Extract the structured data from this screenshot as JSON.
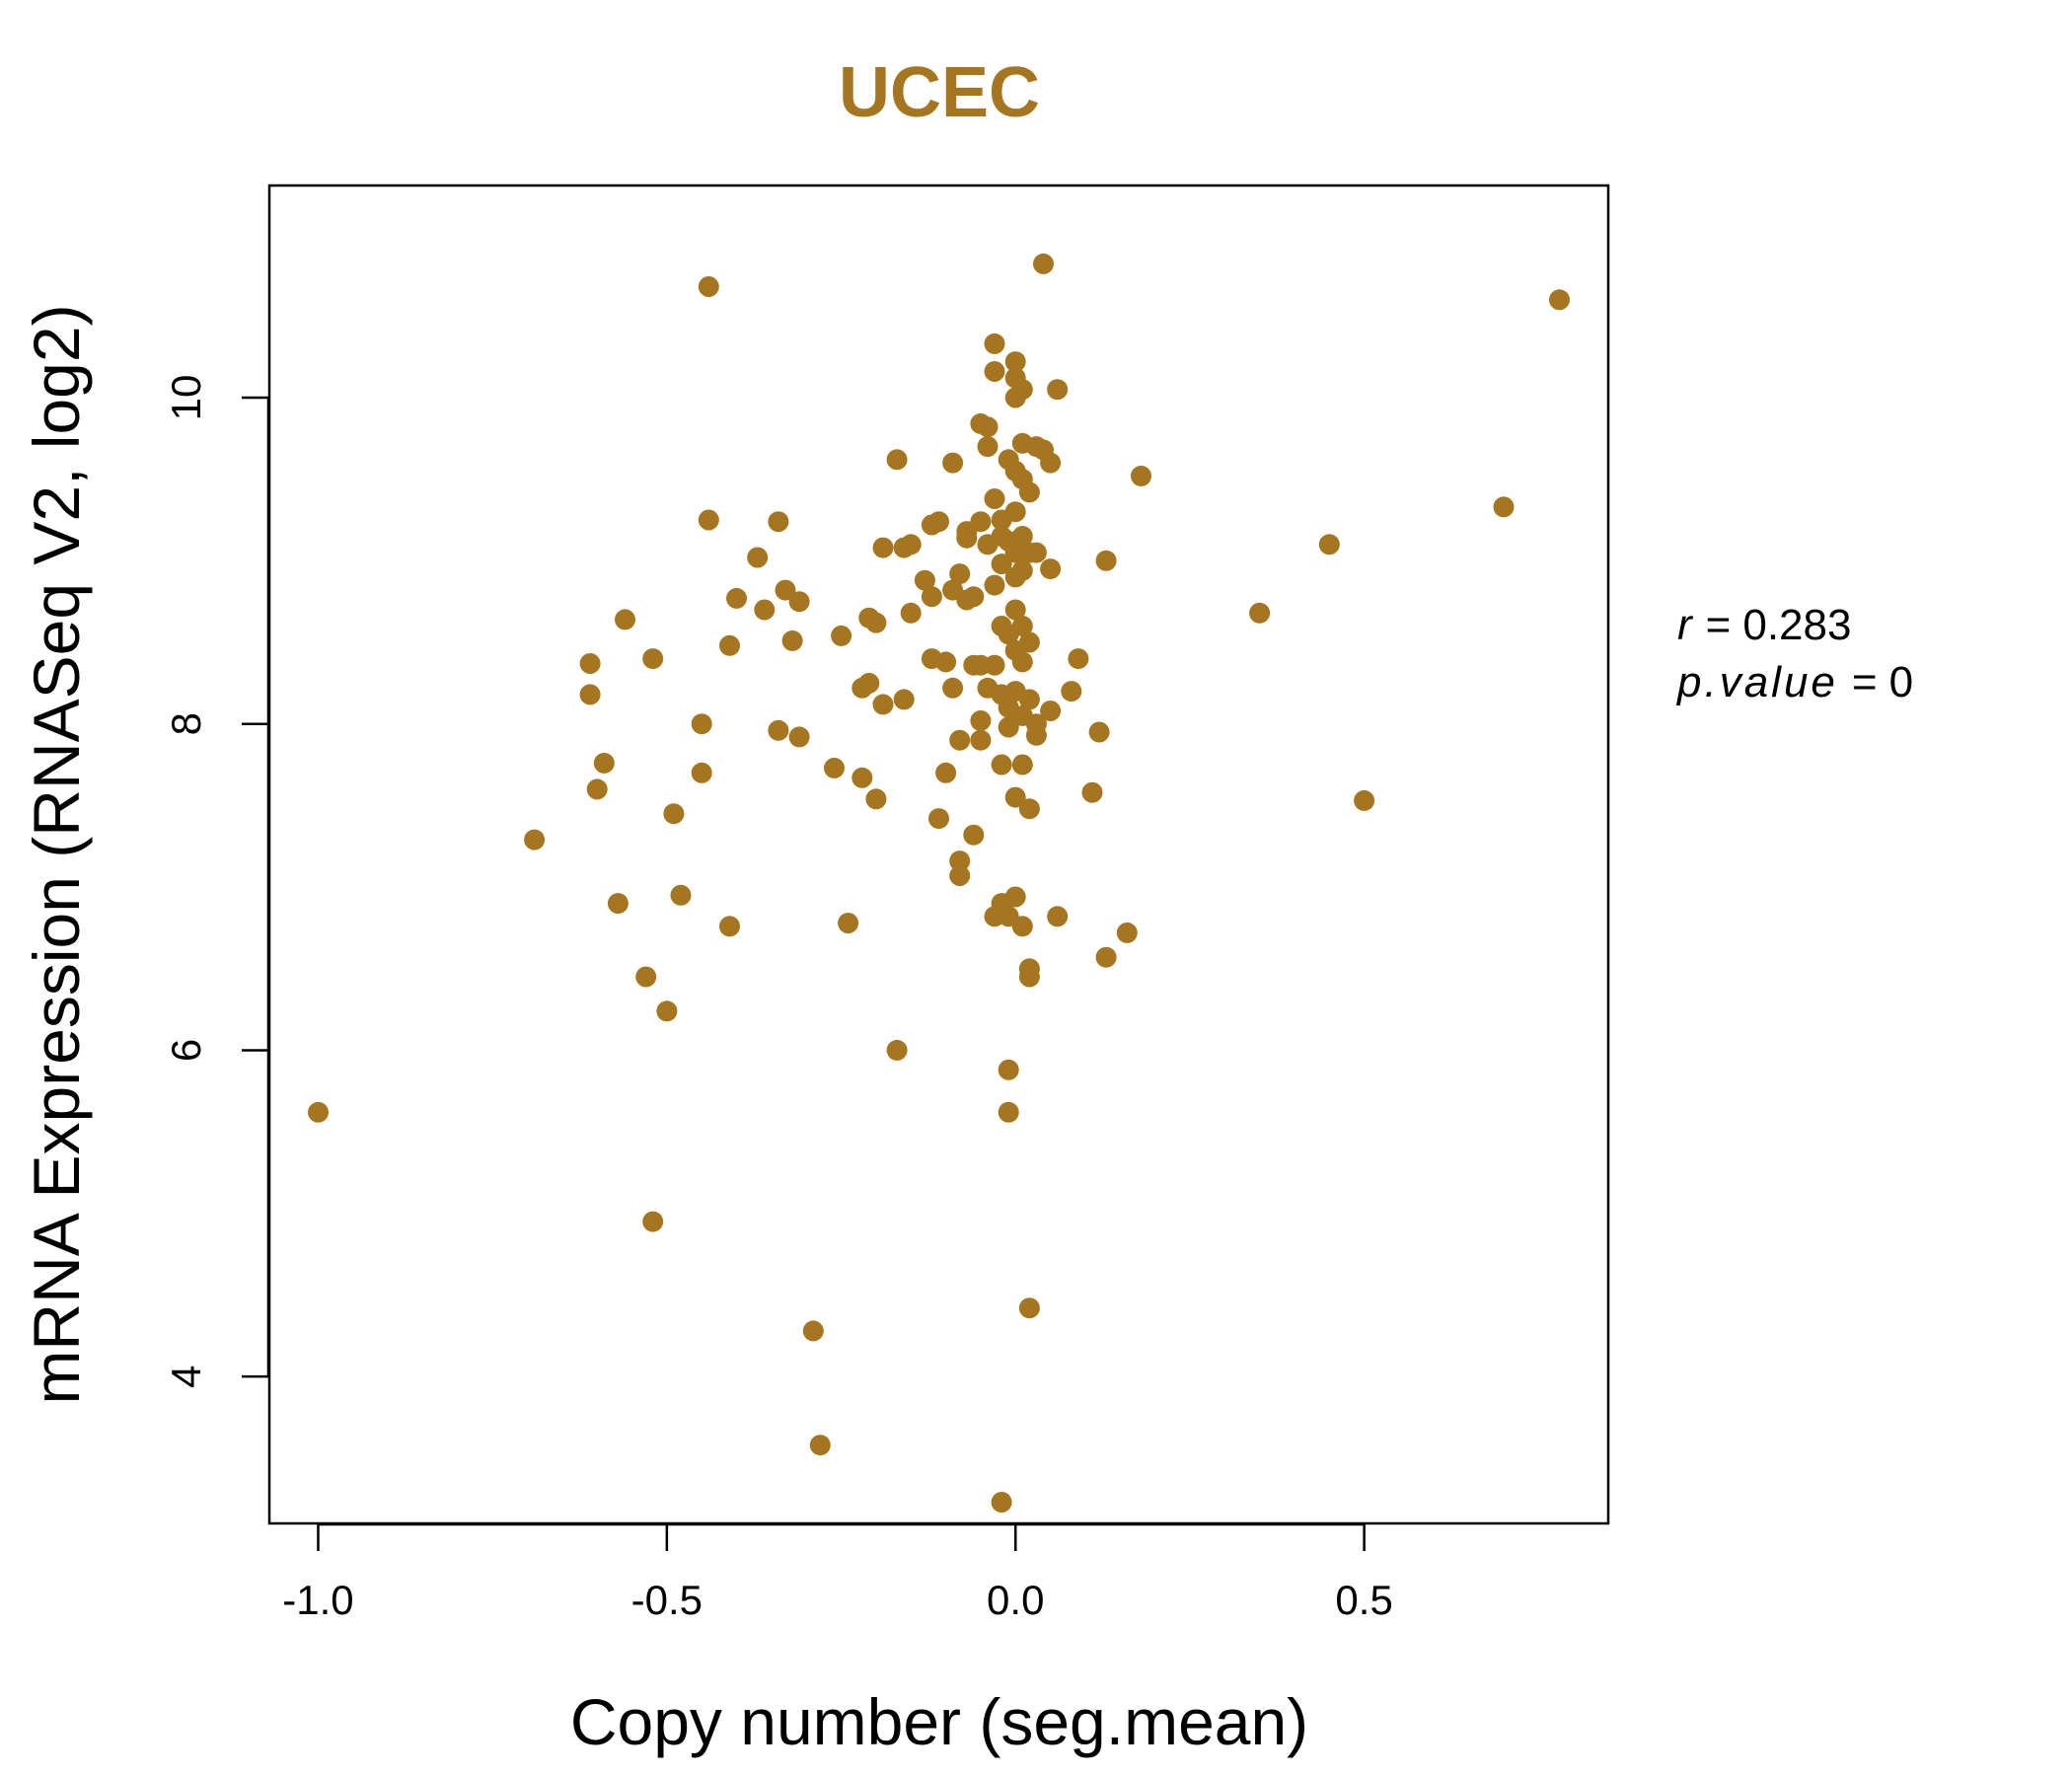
{
  "chart_data": {
    "type": "scatter",
    "title": "UCEC",
    "xlabel": "Copy number (seg.mean)",
    "ylabel": "mRNA Expression (RNASeq V2, log2)",
    "xlim": [
      -1.07,
      0.85
    ],
    "ylim": [
      3.1,
      11.3
    ],
    "x_ticks": [
      {
        "value": -1.0,
        "label": "-1.0"
      },
      {
        "value": -0.5,
        "label": "-0.5"
      },
      {
        "value": 0.0,
        "label": "0.0"
      },
      {
        "value": 0.5,
        "label": "0.5"
      }
    ],
    "y_ticks": [
      {
        "value": 4,
        "label": "4"
      },
      {
        "value": 6,
        "label": "6"
      },
      {
        "value": 8,
        "label": "8"
      },
      {
        "value": 10,
        "label": "10"
      }
    ],
    "point_color": "#a5761f",
    "grid": false,
    "legend": "none",
    "stats": {
      "r_symbol": "r",
      "r_value": "0.283",
      "p_symbol": "p.value",
      "p_value": "0"
    },
    "points": [
      [
        -1.0,
        5.62
      ],
      [
        -0.69,
        7.29
      ],
      [
        -0.61,
        8.37
      ],
      [
        -0.61,
        8.18
      ],
      [
        -0.6,
        7.6
      ],
      [
        -0.59,
        7.76
      ],
      [
        -0.57,
        6.9
      ],
      [
        -0.56,
        8.64
      ],
      [
        -0.53,
        6.45
      ],
      [
        -0.52,
        4.95
      ],
      [
        -0.52,
        8.4
      ],
      [
        -0.5,
        6.24
      ],
      [
        -0.49,
        7.45
      ],
      [
        -0.48,
        6.95
      ],
      [
        -0.45,
        8.0
      ],
      [
        -0.45,
        7.7
      ],
      [
        -0.44,
        9.25
      ],
      [
        -0.44,
        10.68
      ],
      [
        -0.41,
        6.76
      ],
      [
        -0.41,
        8.48
      ],
      [
        -0.4,
        8.77
      ],
      [
        -0.37,
        9.02
      ],
      [
        -0.36,
        8.7
      ],
      [
        -0.34,
        9.24
      ],
      [
        -0.34,
        7.96
      ],
      [
        -0.33,
        8.82
      ],
      [
        -0.32,
        8.51
      ],
      [
        -0.31,
        8.75
      ],
      [
        -0.31,
        7.92
      ],
      [
        -0.29,
        4.28
      ],
      [
        -0.28,
        3.58
      ],
      [
        -0.26,
        7.73
      ],
      [
        -0.25,
        8.54
      ],
      [
        -0.24,
        6.78
      ],
      [
        -0.22,
        8.22
      ],
      [
        -0.22,
        7.67
      ],
      [
        -0.21,
        8.25
      ],
      [
        -0.21,
        8.65
      ],
      [
        -0.2,
        8.62
      ],
      [
        -0.2,
        7.54
      ],
      [
        -0.19,
        9.08
      ],
      [
        -0.19,
        8.12
      ],
      [
        -0.17,
        9.62
      ],
      [
        -0.17,
        6.0
      ],
      [
        -0.16,
        9.08
      ],
      [
        -0.16,
        8.15
      ],
      [
        -0.15,
        9.1
      ],
      [
        -0.15,
        8.68
      ],
      [
        -0.13,
        8.88
      ],
      [
        -0.12,
        9.22
      ],
      [
        -0.12,
        8.4
      ],
      [
        -0.12,
        8.78
      ],
      [
        -0.11,
        7.42
      ],
      [
        -0.11,
        9.24
      ],
      [
        -0.1,
        8.38
      ],
      [
        -0.1,
        7.7
      ],
      [
        -0.09,
        9.6
      ],
      [
        -0.09,
        8.82
      ],
      [
        -0.09,
        8.22
      ],
      [
        -0.08,
        8.92
      ],
      [
        -0.08,
        7.9
      ],
      [
        -0.08,
        7.07
      ],
      [
        -0.08,
        7.16
      ],
      [
        -0.07,
        9.18
      ],
      [
        -0.07,
        8.76
      ],
      [
        -0.07,
        9.14
      ],
      [
        -0.06,
        8.36
      ],
      [
        -0.06,
        7.32
      ],
      [
        -0.06,
        8.78
      ],
      [
        -0.05,
        9.84
      ],
      [
        -0.05,
        9.24
      ],
      [
        -0.05,
        8.36
      ],
      [
        -0.05,
        8.02
      ],
      [
        -0.05,
        7.9
      ],
      [
        -0.04,
        9.82
      ],
      [
        -0.04,
        9.7
      ],
      [
        -0.04,
        9.1
      ],
      [
        -0.04,
        8.22
      ],
      [
        -0.03,
        10.33
      ],
      [
        -0.03,
        10.16
      ],
      [
        -0.03,
        9.38
      ],
      [
        -0.03,
        8.85
      ],
      [
        -0.03,
        8.36
      ],
      [
        -0.03,
        6.82
      ],
      [
        -0.02,
        9.25
      ],
      [
        -0.02,
        9.15
      ],
      [
        -0.02,
        8.98
      ],
      [
        -0.02,
        8.6
      ],
      [
        -0.02,
        8.18
      ],
      [
        -0.02,
        7.75
      ],
      [
        -0.02,
        6.9
      ],
      [
        -0.02,
        3.23
      ],
      [
        -0.01,
        9.62
      ],
      [
        -0.01,
        9.12
      ],
      [
        -0.01,
        8.55
      ],
      [
        -0.01,
        8.1
      ],
      [
        -0.01,
        7.98
      ],
      [
        -0.01,
        6.82
      ],
      [
        -0.01,
        5.62
      ],
      [
        -0.01,
        5.88
      ],
      [
        0.0,
        9.55
      ],
      [
        0.0,
        9.3
      ],
      [
        0.0,
        9.05
      ],
      [
        0.0,
        8.9
      ],
      [
        0.0,
        8.7
      ],
      [
        0.0,
        8.45
      ],
      [
        0.0,
        8.2
      ],
      [
        0.0,
        7.55
      ],
      [
        0.0,
        6.94
      ],
      [
        0.0,
        10.22
      ],
      [
        0.0,
        10.12
      ],
      [
        0.0,
        10.0
      ],
      [
        0.01,
        9.72
      ],
      [
        0.01,
        9.5
      ],
      [
        0.01,
        9.15
      ],
      [
        0.01,
        8.94
      ],
      [
        0.01,
        8.6
      ],
      [
        0.01,
        8.38
      ],
      [
        0.01,
        8.05
      ],
      [
        0.01,
        7.75
      ],
      [
        0.01,
        6.76
      ],
      [
        0.01,
        10.05
      ],
      [
        0.02,
        9.42
      ],
      [
        0.02,
        9.05
      ],
      [
        0.02,
        8.5
      ],
      [
        0.02,
        8.15
      ],
      [
        0.02,
        7.48
      ],
      [
        0.02,
        6.5
      ],
      [
        0.02,
        6.45
      ],
      [
        0.02,
        4.42
      ],
      [
        0.03,
        9.7
      ],
      [
        0.03,
        9.05
      ],
      [
        0.03,
        8.0
      ],
      [
        0.03,
        7.93
      ],
      [
        0.04,
        9.68
      ],
      [
        0.05,
        9.6
      ],
      [
        0.05,
        8.95
      ],
      [
        0.05,
        8.08
      ],
      [
        0.06,
        10.05
      ],
      [
        0.06,
        6.82
      ],
      [
        0.08,
        8.2
      ],
      [
        0.09,
        8.4
      ],
      [
        0.11,
        7.58
      ],
      [
        0.12,
        7.95
      ],
      [
        0.13,
        9.0
      ],
      [
        0.13,
        6.57
      ],
      [
        0.16,
        6.72
      ],
      [
        0.18,
        9.52
      ],
      [
        0.04,
        10.82
      ],
      [
        0.35,
        8.68
      ],
      [
        0.45,
        9.1
      ],
      [
        0.5,
        7.53
      ],
      [
        0.7,
        9.33
      ],
      [
        0.78,
        10.6
      ]
    ]
  }
}
